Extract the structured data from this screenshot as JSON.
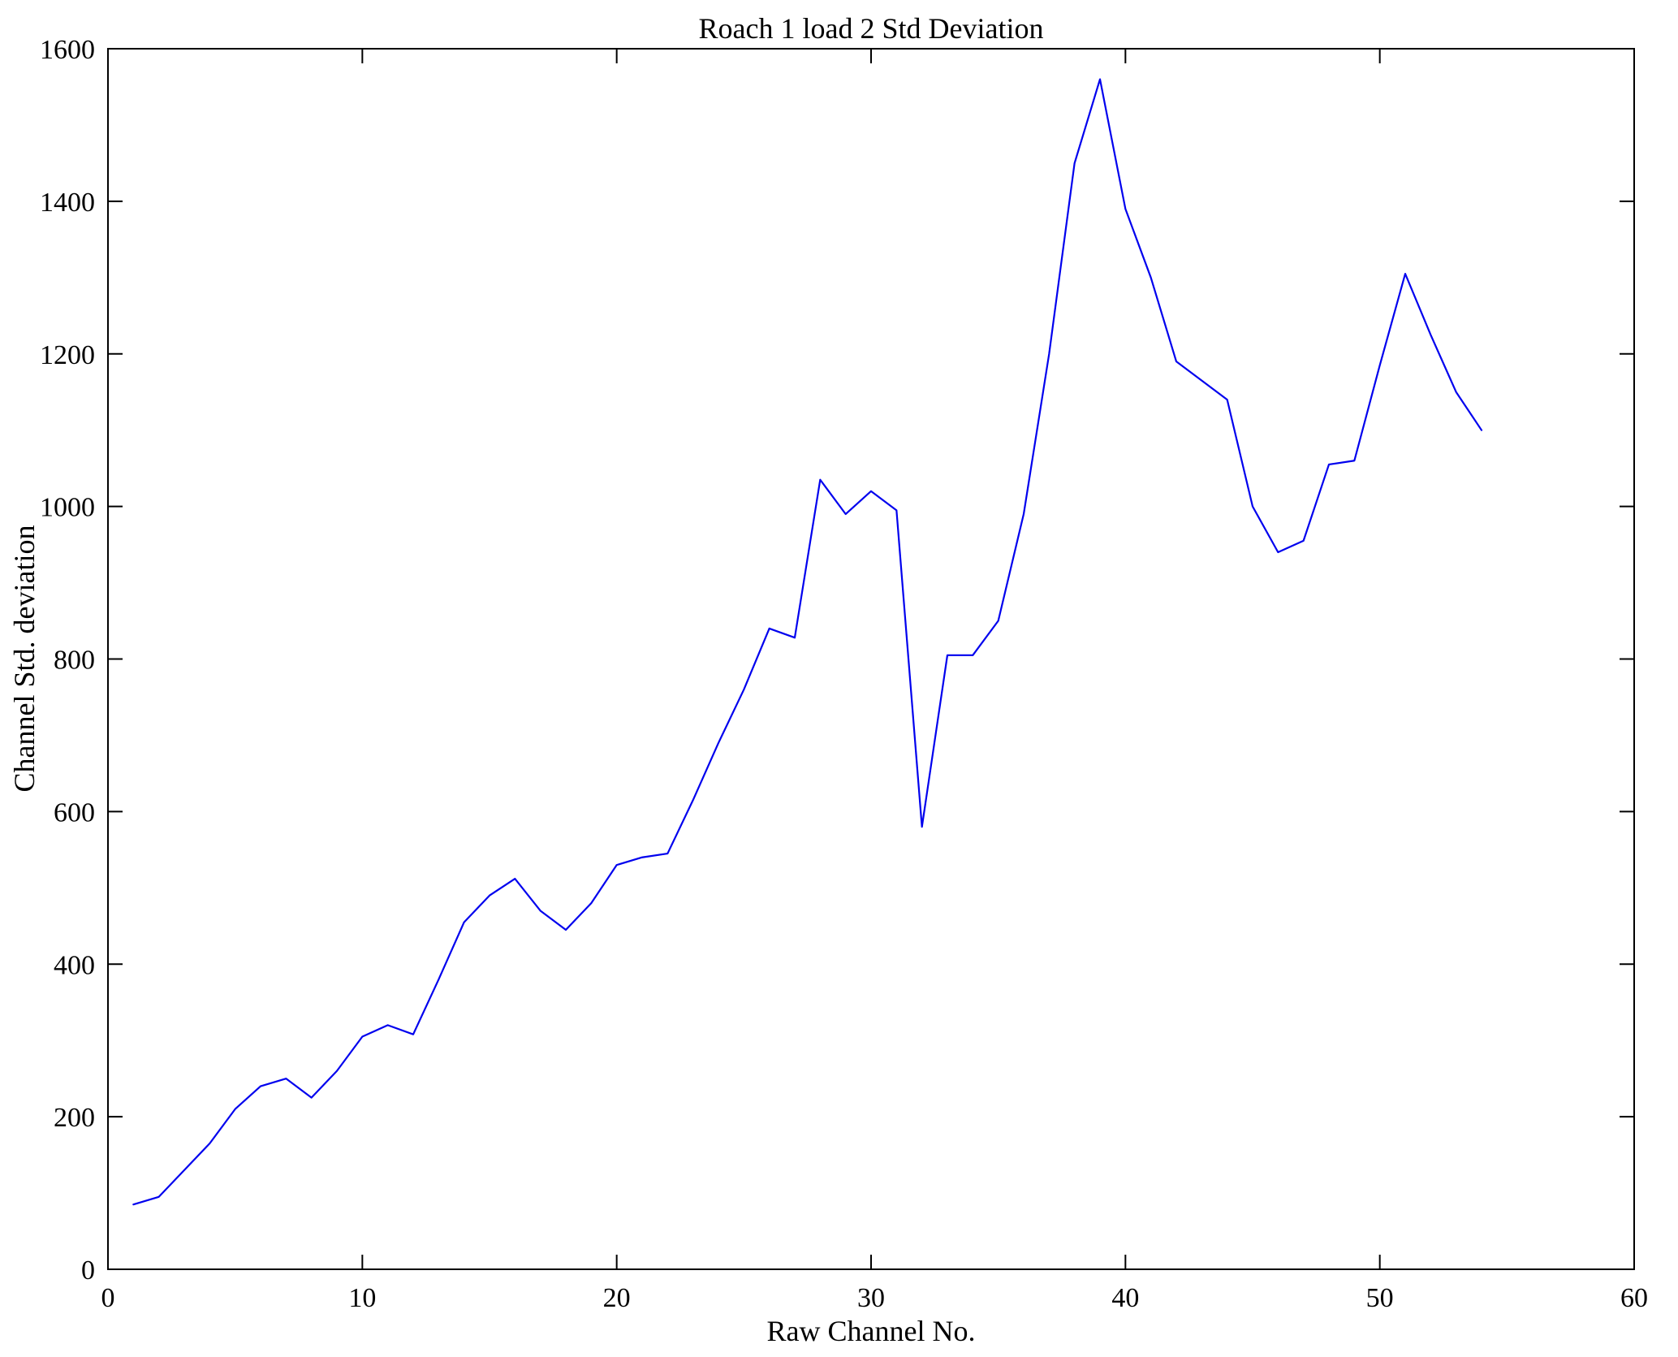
{
  "chart_data": {
    "type": "line",
    "title": "Roach 1 load 2 Std Deviation",
    "xlabel": "Raw Channel No.",
    "ylabel": "Channel Std. deviation",
    "x": [
      1,
      2,
      3,
      4,
      5,
      6,
      7,
      8,
      9,
      10,
      11,
      12,
      13,
      14,
      15,
      16,
      17,
      18,
      19,
      20,
      21,
      22,
      23,
      24,
      25,
      26,
      27,
      28,
      29,
      30,
      31,
      32,
      33,
      34,
      35,
      36,
      37,
      38,
      39,
      40,
      41,
      42,
      43,
      44,
      45,
      46,
      47,
      48,
      49,
      50,
      51,
      52,
      53,
      54
    ],
    "values": [
      85,
      95,
      130,
      165,
      210,
      240,
      250,
      225,
      260,
      305,
      320,
      308,
      380,
      455,
      490,
      512,
      470,
      445,
      480,
      530,
      540,
      545,
      615,
      690,
      760,
      840,
      828,
      1035,
      990,
      1020,
      995,
      580,
      805,
      805,
      850,
      990,
      1200,
      1450,
      1560,
      1390,
      1300,
      1190,
      1165,
      1140,
      1000,
      940,
      955,
      1055,
      1060,
      1185,
      1305,
      1225,
      1150,
      1100
    ],
    "xlim": [
      0,
      60
    ],
    "ylim": [
      0,
      1600
    ],
    "xticks": [
      0,
      10,
      20,
      30,
      40,
      50,
      60
    ],
    "yticks": [
      0,
      200,
      400,
      600,
      800,
      1000,
      1200,
      1400,
      1600
    ],
    "line_color": "#0000ee",
    "axis_color": "#000000",
    "grid": false,
    "legend_position": "none"
  }
}
